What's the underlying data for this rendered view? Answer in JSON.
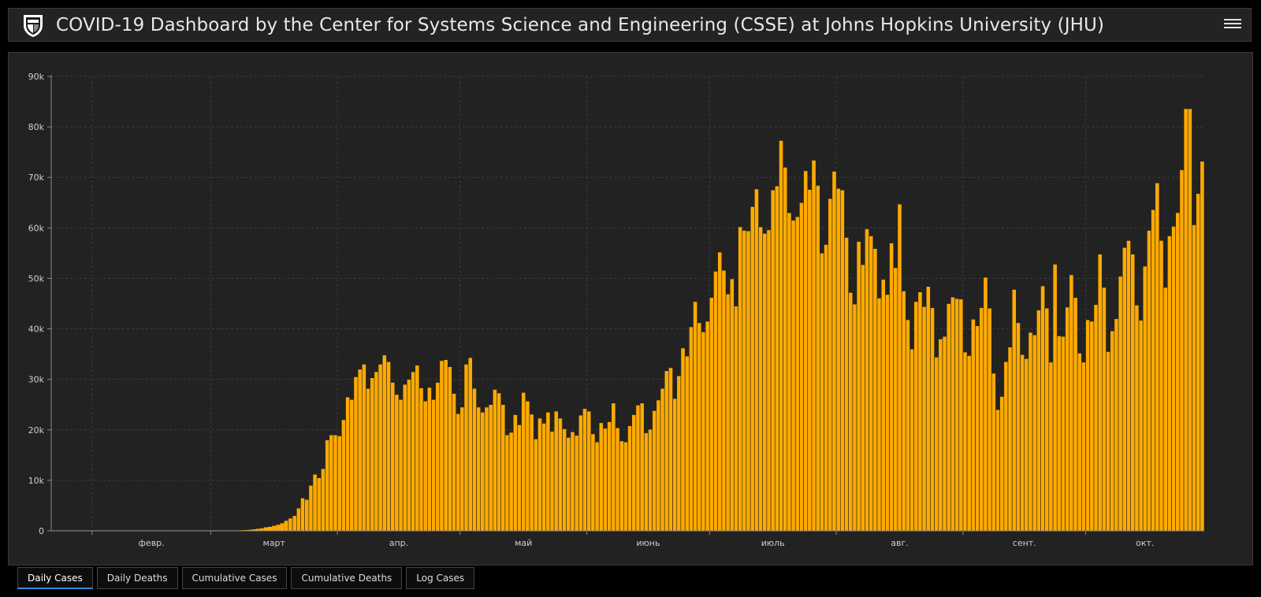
{
  "header": {
    "title": "COVID-19 Dashboard by the Center for Systems Science and Engineering (CSSE) at Johns Hopkins University (JHU)"
  },
  "colors": {
    "bar": "#ffaa00",
    "panel": "#222222",
    "grid": "#3c3c3c",
    "active_tab": "#2d8de0"
  },
  "tabs": [
    {
      "label": "Daily Cases",
      "active": true
    },
    {
      "label": "Daily Deaths",
      "active": false
    },
    {
      "label": "Cumulative Cases",
      "active": false
    },
    {
      "label": "Cumulative Deaths",
      "active": false
    },
    {
      "label": "Log Cases",
      "active": false
    }
  ],
  "chart_data": {
    "type": "bar",
    "title": "",
    "xlabel": "",
    "ylabel": "",
    "ylim": [
      0,
      90000
    ],
    "grid": true,
    "y_ticks": [
      "0",
      "10k",
      "20k",
      "30k",
      "40k",
      "50k",
      "60k",
      "70k",
      "80k",
      "90k"
    ],
    "x_tick_labels": [
      "февр.",
      "март",
      "апр.",
      "май",
      "июнь",
      "июль",
      "авг.",
      "сент.",
      "окт."
    ],
    "x_start": "2020-01-22",
    "values": [
      0,
      0,
      0,
      0,
      0,
      0,
      0,
      0,
      0,
      0,
      0,
      0,
      0,
      0,
      0,
      0,
      0,
      0,
      0,
      0,
      0,
      0,
      0,
      0,
      0,
      0,
      0,
      0,
      0,
      0,
      0,
      0,
      0,
      0,
      0,
      0,
      0,
      0,
      0,
      0,
      0,
      0,
      0,
      0,
      0,
      0,
      100,
      150,
      200,
      300,
      400,
      500,
      700,
      800,
      1000,
      1200,
      1500,
      2000,
      2500,
      3000,
      4500,
      6500,
      6200,
      9000,
      11200,
      10500,
      12300,
      18000,
      19000,
      19000,
      18800,
      22000,
      26500,
      26000,
      30500,
      32000,
      33000,
      28200,
      30300,
      31500,
      33000,
      34800,
      33500,
      29400,
      27000,
      26000,
      29000,
      30000,
      31500,
      32800,
      28300,
      25700,
      28400,
      26000,
      29400,
      33700,
      33900,
      32500,
      27200,
      23200,
      24500,
      33000,
      34300,
      28200,
      24500,
      23500,
      24500,
      25000,
      28000,
      27300,
      25000,
      19000,
      19500,
      23000,
      21000,
      27400,
      25700,
      23100,
      18200,
      22300,
      21300,
      23500,
      19700,
      23700,
      22300,
      20200,
      18500,
      19600,
      18900,
      22900,
      24200,
      23700,
      19200,
      17600,
      21400,
      20300,
      21600,
      25300,
      20400,
      17800,
      17600,
      20800,
      23000,
      24900,
      25300,
      19400,
      20100,
      23800,
      25900,
      28200,
      31700,
      32300,
      26200,
      30700,
      36200,
      34600,
      40400,
      45400,
      41200,
      39400,
      41500,
      46200,
      51400,
      55200,
      51600,
      46900,
      49900,
      44500,
      60200,
      59500,
      59400,
      64200,
      67700,
      60200,
      58900,
      59600,
      67500,
      68300,
      77300,
      72000,
      63000,
      61500,
      62200,
      65000,
      71300,
      67600,
      73400,
      68400,
      55000,
      56700,
      65800,
      71200,
      67800,
      67500,
      58100,
      47200,
      44900,
      57300,
      52700,
      59800,
      58400,
      55900,
      46100,
      49800,
      46800,
      57000,
      52100,
      64700,
      47500,
      41800,
      36000,
      45400,
      47300,
      44400,
      48400,
      44200,
      34400,
      38000,
      38500,
      45000,
      46300,
      46000,
      45900,
      35400,
      34700,
      41900,
      40600,
      44200,
      50200,
      44100,
      31200,
      24000,
      26600,
      33500,
      36400,
      47800,
      41200,
      34900,
      34100,
      39300,
      38800,
      43700,
      48500,
      44100,
      33400,
      52800,
      38600,
      38500,
      44300,
      50700,
      46200,
      35200,
      33400,
      41800,
      41500,
      44800,
      54800,
      48200,
      35500,
      39600,
      42000,
      50400,
      56100,
      57500,
      54800,
      44700,
      41700,
      52400,
      59500,
      63600,
      68900,
      57500,
      48200,
      58400,
      60300,
      63000,
      71500,
      83600,
      83600,
      60600,
      66800,
      73200
    ]
  }
}
